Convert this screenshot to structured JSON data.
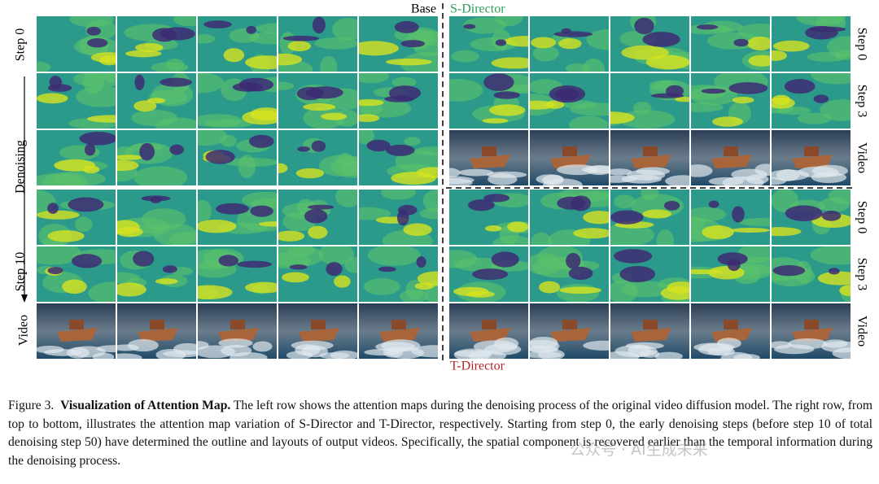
{
  "header": {
    "base": "Base",
    "s_director": "S-Director",
    "t_director": "T-Director"
  },
  "left_labels": {
    "top": "Step 0",
    "middle": "Denoising",
    "bottom": "Step 10",
    "video": "Video"
  },
  "right_labels": [
    "Step 0",
    "Step 3",
    "Video",
    "Step 0",
    "Step 3",
    "Video"
  ],
  "caption": {
    "label": "Figure 3.",
    "title": "Visualization of Attention Map.",
    "text": "The left row shows the attention maps during the denoising process of the original video diffusion model. The right row, from top to bottom, illustrates the attention map variation of S-Director and T-Director, respectively. Starting from step 0, the early denoising steps (before step 10 of total denoising step 50) have determined the outline and layouts of output videos. Specifically, the spatial component is recovered earlier than the temporal information during the denoising process."
  },
  "watermark": "公众号 · AI生成未来"
}
